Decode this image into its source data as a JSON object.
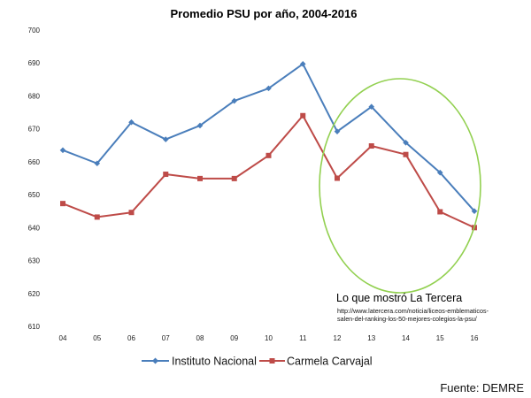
{
  "chart_data": {
    "type": "line",
    "title": "Promedio PSU por año, 2004-2016",
    "xlabel": "",
    "ylabel": "",
    "categories": [
      "04",
      "05",
      "06",
      "07",
      "08",
      "09",
      "10",
      "11",
      "12",
      "13",
      "14",
      "15",
      "16"
    ],
    "ylim": [
      610,
      700
    ],
    "yticks": [
      610,
      620,
      630,
      640,
      650,
      660,
      670,
      680,
      690,
      700
    ],
    "grid": false,
    "legend_position": "bottom",
    "series": [
      {
        "name": "Instituto Nacional",
        "color": "#4a7ebb",
        "marker": "diamond",
        "values": [
          663.5,
          659.5,
          672,
          666.8,
          671,
          678.5,
          682.3,
          689.7,
          669.2,
          676.7,
          665.8,
          656.7,
          645
        ]
      },
      {
        "name": "Carmela Carvajal",
        "color": "#be4b48",
        "marker": "square",
        "values": [
          647.3,
          643.2,
          644.6,
          656.2,
          654.9,
          654.9,
          661.9,
          674,
          655,
          664.8,
          662.2,
          644.8,
          640
        ]
      }
    ],
    "annotations": {
      "circle_color": "#92d050",
      "heading": "Lo que mostró La Tercera",
      "url_lines": [
        "http://www.latercera.com/noticia/liceos-emblematicos-",
        "salen-del-ranking-los-50-mejores-colegios-la-psu/"
      ]
    },
    "source": "Fuente: DEMRE"
  }
}
